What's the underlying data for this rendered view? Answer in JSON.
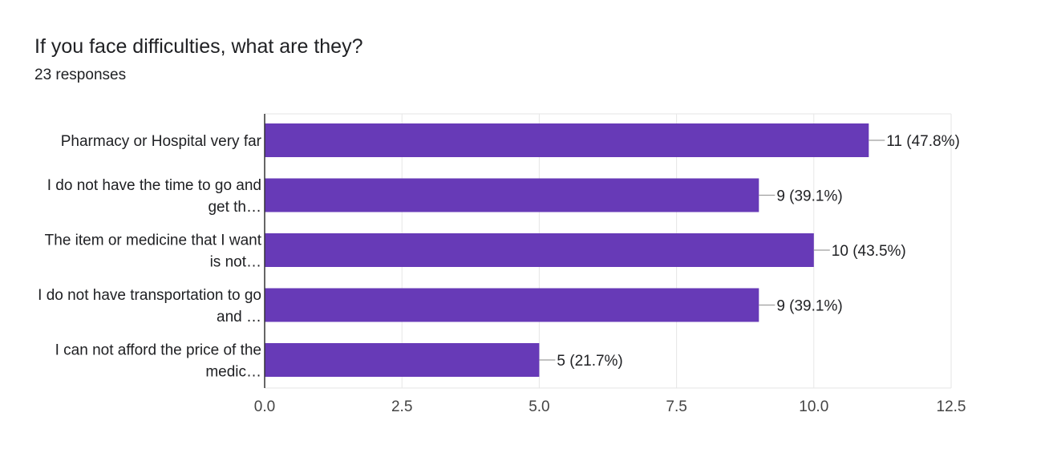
{
  "header": {
    "question": "If you face difficulties, what are they?",
    "responses": "23 responses"
  },
  "colors": {
    "bar": "#673ab7",
    "grid": "#e6e6e6",
    "axis": "#333333",
    "leader": "#9e9e9e"
  },
  "chart_data": {
    "type": "bar",
    "orientation": "horizontal",
    "title": "If you face difficulties, what are they?",
    "subtitle": "23 responses",
    "categories": [
      [
        "Pharmacy or Hospital very far"
      ],
      [
        "I do not have the time to go and",
        "get th…"
      ],
      [
        "The item or medicine that I want",
        "is not…"
      ],
      [
        "I do not have transportation to go",
        "and …"
      ],
      [
        "I can not afford the price of the",
        "medic…"
      ]
    ],
    "values": [
      11,
      9,
      10,
      9,
      5
    ],
    "data_labels": [
      "11 (47.8%)",
      "9 (39.1%)",
      "10 (43.5%)",
      "9 (39.1%)",
      "5 (21.7%)"
    ],
    "xlim": [
      0,
      12.5
    ],
    "xticks": [
      0,
      2.5,
      5,
      7.5,
      10,
      12.5
    ],
    "xtick_labels": [
      "0.0",
      "2.5",
      "5.0",
      "7.5",
      "10.0",
      "12.5"
    ],
    "grid": true,
    "legend": "none"
  }
}
